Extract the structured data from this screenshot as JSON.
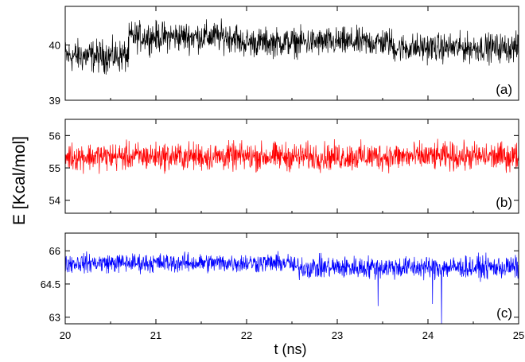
{
  "chart_data": {
    "type": "line",
    "ylabel": "E [Kcal/mol]",
    "xlabel": "t (ns)",
    "xlim": [
      20,
      25
    ],
    "x_ticks": [
      20,
      21,
      22,
      23,
      24,
      25
    ],
    "x_tick_labels": [
      "20",
      "21",
      "22",
      "23",
      "24",
      "25"
    ],
    "grid": false,
    "panels": [
      {
        "tag": "(a)",
        "color": "#000000",
        "ylim": [
          39,
          40.7
        ],
        "y_ticks": [
          39,
          40
        ],
        "y_tick_labels": [
          "39",
          "40"
        ],
        "segments": [
          {
            "x0": 20.0,
            "x1": 20.7,
            "mean": 39.8,
            "amp": 0.38
          },
          {
            "x0": 20.7,
            "x1": 21.9,
            "mean": 40.15,
            "amp": 0.35
          },
          {
            "x0": 21.9,
            "x1": 23.6,
            "mean": 40.05,
            "amp": 0.33
          },
          {
            "x0": 23.6,
            "x1": 25.0,
            "mean": 39.95,
            "amp": 0.33
          }
        ]
      },
      {
        "tag": "(b)",
        "color": "#ff0000",
        "ylim": [
          53.6,
          56.5
        ],
        "y_ticks": [
          54,
          55,
          56
        ],
        "y_tick_labels": [
          "54",
          "55",
          "56"
        ],
        "segments": [
          {
            "x0": 20.0,
            "x1": 25.0,
            "mean": 55.35,
            "amp": 0.55
          }
        ]
      },
      {
        "tag": "(c)",
        "color": "#0000ff",
        "ylim": [
          62.7,
          66.8
        ],
        "y_ticks": [
          63,
          64.5,
          66
        ],
        "y_tick_labels": [
          "63",
          "64.5",
          "66"
        ],
        "segments": [
          {
            "x0": 20.0,
            "x1": 22.5,
            "mean": 65.45,
            "amp": 0.55
          },
          {
            "x0": 22.5,
            "x1": 25.0,
            "mean": 65.25,
            "amp": 0.65
          }
        ],
        "spikes": [
          {
            "x": 24.15,
            "y": 62.7
          },
          {
            "x": 23.45,
            "y": 63.5
          },
          {
            "x": 24.05,
            "y": 63.6
          }
        ]
      }
    ]
  }
}
